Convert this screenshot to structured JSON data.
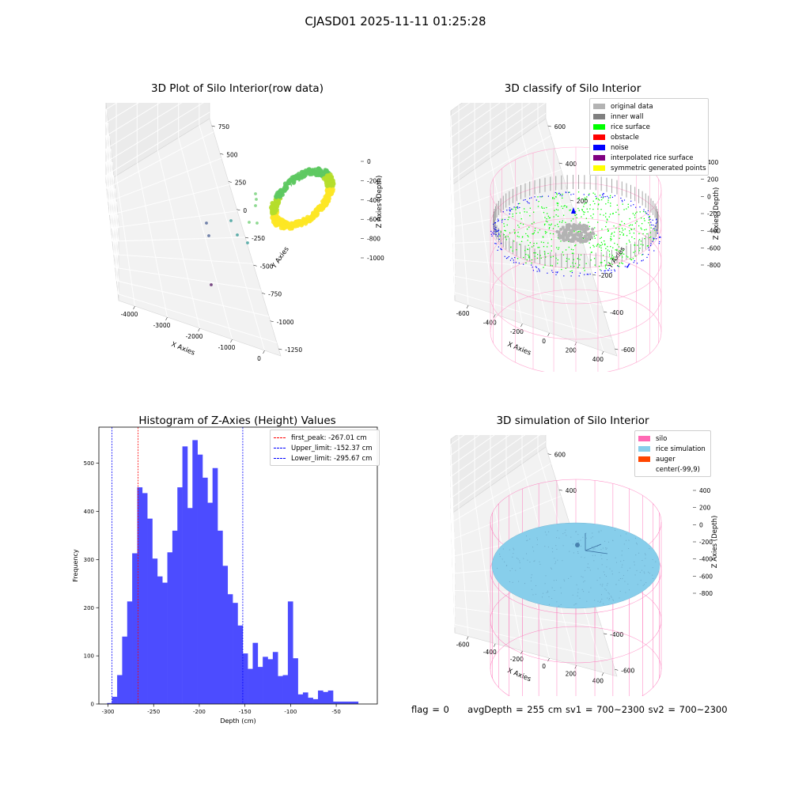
{
  "suptitle": "CJASD01 2025-11-11 01:25:28",
  "footer": {
    "flag": "flag = 0",
    "stats": "avgDepth = 255 cm  sv1 = 700~2300  sv2 = 700~2300"
  },
  "chart_data": [
    {
      "type": "scatter",
      "title": "3D Plot of Silo Interior(row data)",
      "xlabel": "X Axies",
      "ylabel": "Y Axies",
      "zlabel": "Z Axies (Depth)",
      "x_ticks": [
        "-4000",
        "-3000",
        "-2000",
        "-1000",
        "0"
      ],
      "y_ticks": [
        "750",
        "500",
        "250",
        "0",
        "-250",
        "-500",
        "-750",
        "-1000",
        "-1250"
      ],
      "z_ticks": [
        "0",
        "-200",
        "-400",
        "-600",
        "-800",
        "-1000"
      ],
      "colormap": [
        "#440154",
        "#3b528b",
        "#21918c",
        "#5ec962",
        "#fde725"
      ]
    },
    {
      "type": "scatter",
      "title": "3D classify of Silo Interior",
      "xlabel": "X Axies",
      "ylabel": "Y Axies",
      "zlabel": "Z Axies (Depth)",
      "x_ticks": [
        "-600",
        "-400",
        "-200",
        "0",
        "200",
        "400"
      ],
      "y_ticks": [
        "600",
        "400",
        "200",
        "0",
        "-200",
        "-400",
        "-600"
      ],
      "z_ticks": [
        "400",
        "200",
        "0",
        "-200",
        "-400",
        "-600",
        "-800"
      ],
      "legend": [
        {
          "label": "original data",
          "color": "#b3b3b3"
        },
        {
          "label": "inner wall",
          "color": "#808080"
        },
        {
          "label": "rice surface",
          "color": "#00ff00"
        },
        {
          "label": "obstacle",
          "color": "#ff0000"
        },
        {
          "label": "noise",
          "color": "#0000ff"
        },
        {
          "label": "interpolated rice surface",
          "color": "#800080"
        },
        {
          "label": "symmetric generated points",
          "color": "#ffff00"
        }
      ]
    },
    {
      "type": "bar",
      "title": "Histogram of Z-Axies (Height) Values",
      "xlabel": "Depth (cm)",
      "ylabel": "Frequency",
      "xlim": [
        -310,
        -5
      ],
      "ylim": [
        0,
        575
      ],
      "x_ticks": [
        -300,
        -250,
        -200,
        -150,
        -100,
        -50
      ],
      "y_ticks": [
        0,
        100,
        200,
        300,
        400,
        500
      ],
      "bar_color": "#4c4cff",
      "bin_width": 5.5,
      "bins_start": -301,
      "values": [
        2,
        15,
        60,
        140,
        213,
        313,
        450,
        438,
        385,
        302,
        265,
        252,
        315,
        360,
        450,
        535,
        407,
        548,
        518,
        470,
        418,
        490,
        360,
        287,
        228,
        210,
        163,
        105,
        73,
        127,
        77,
        98,
        93,
        108,
        58,
        60,
        213,
        95,
        20,
        24,
        13,
        10,
        28,
        25,
        28,
        5,
        5,
        5,
        5,
        5
      ],
      "vlines": [
        {
          "label": "first_peak: -267.01 cm",
          "x": -267.01,
          "color": "#ff0000"
        },
        {
          "label": "Upper_limit: -152.37 cm",
          "x": -152.37,
          "color": "#0000ff"
        },
        {
          "label": "Lower_limit: -295.67 cm",
          "x": -295.67,
          "color": "#0000ff"
        }
      ]
    },
    {
      "type": "scatter",
      "title": "3D simulation of Silo Interior",
      "xlabel": "X Axies",
      "ylabel": "Y Axies",
      "zlabel": "Z Axies (Depth)",
      "x_ticks": [
        "-600",
        "-400",
        "-200",
        "0",
        "200",
        "400"
      ],
      "y_ticks": [
        "600",
        "400",
        "200",
        "0",
        "-200",
        "-400",
        "-600"
      ],
      "z_ticks": [
        "400",
        "200",
        "0",
        "-200",
        "-400",
        "-600",
        "-800"
      ],
      "legend": [
        {
          "label": "silo",
          "color": "#ff69b4"
        },
        {
          "label": "rice simulation",
          "color": "#87ceeb"
        },
        {
          "label": "auger",
          "color": "#ff4500"
        },
        {
          "label": "center(-99,9)",
          "color": "#ffffff"
        }
      ]
    }
  ]
}
